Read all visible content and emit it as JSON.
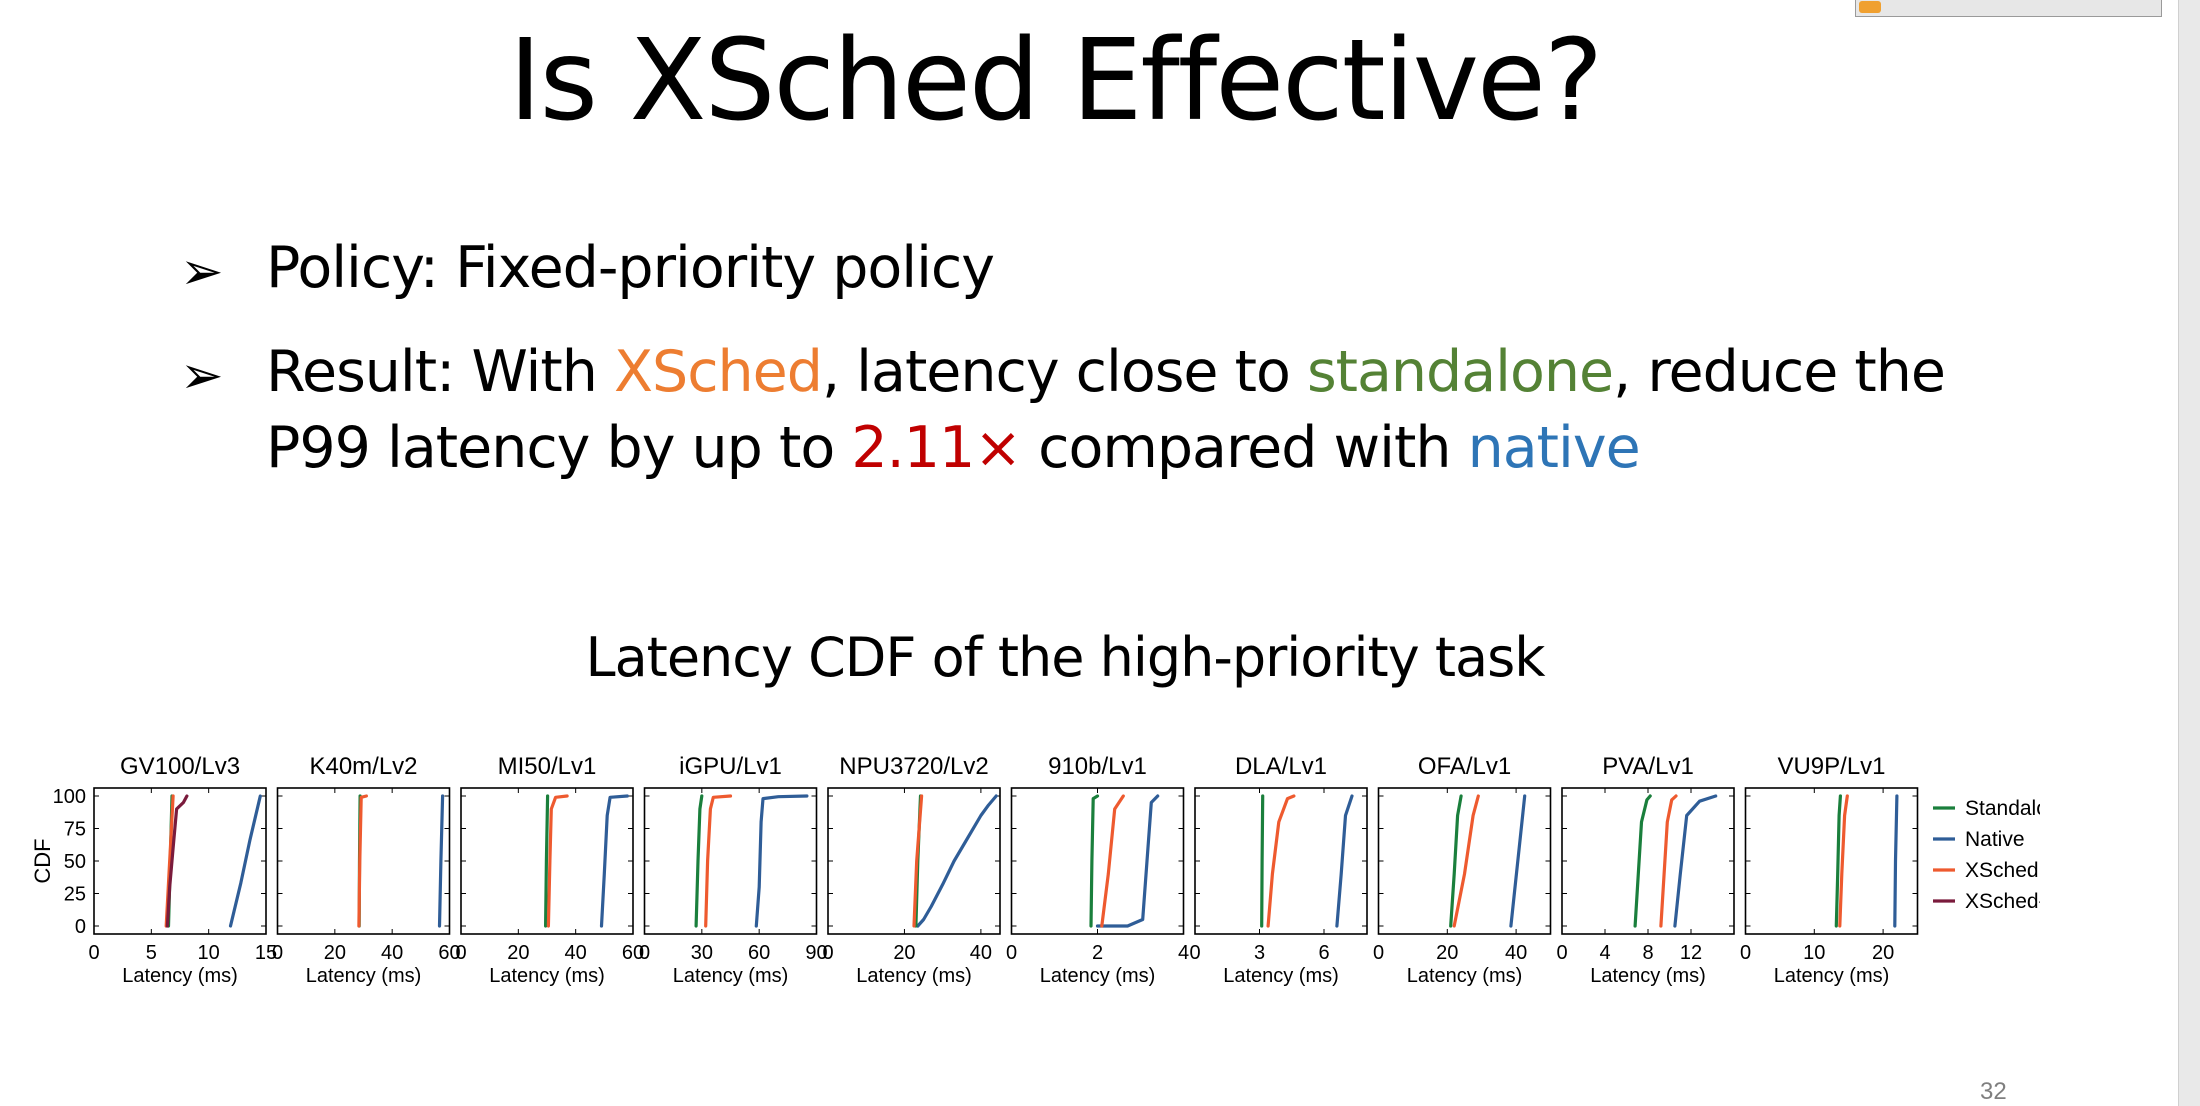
{
  "slide": {
    "title": "Is XSched Effective?",
    "page_number": "32",
    "bullets": {
      "b1": {
        "text": "Policy: Fixed-priority policy"
      },
      "b2": {
        "part1": "Result: With ",
        "xsched": "XSched",
        "part2": ", latency close to ",
        "standalone": "standalone",
        "part3": ", reduce the",
        "line2_part1": "P99 latency by up to ",
        "factor": "2.11×",
        "line2_part2": " compared with ",
        "native": "native"
      }
    },
    "figure_title": "Latency CDF of the high-priority task"
  },
  "colors": {
    "Standalone": "#1a7f3c",
    "Native": "#2f5d97",
    "XSched": "#ee5a2f",
    "XSched-T": "#7a1b3c"
  },
  "chart_data": {
    "type": "line",
    "ylabel": "CDF",
    "xlabel": "Latency (ms)",
    "ylim": [
      0,
      100
    ],
    "yticks": [
      0,
      25,
      50,
      75,
      100
    ],
    "legend": [
      "Standalone",
      "Native",
      "XSched",
      "XSched-T"
    ],
    "legend_position": "right",
    "panels": [
      {
        "title": "GV100/Lv3",
        "xlim": [
          0,
          15
        ],
        "xticks": [
          0,
          5,
          10,
          15
        ],
        "series": [
          {
            "name": "Standalone",
            "x": [
              6.5,
              6.6,
              6.7,
              6.8
            ],
            "y": [
              0,
              33,
              66,
              100
            ]
          },
          {
            "name": "Native",
            "x": [
              11.9,
              12.8,
              13.6,
              14.5
            ],
            "y": [
              0,
              33,
              66,
              100
            ]
          },
          {
            "name": "XSched",
            "x": [
              6.3,
              6.5,
              6.7,
              6.9
            ],
            "y": [
              0,
              33,
              66,
              100
            ]
          },
          {
            "name": "XSched-T",
            "x": [
              6.4,
              6.6,
              6.9,
              7.2,
              7.8,
              8.1
            ],
            "y": [
              0,
              30,
              60,
              90,
              95,
              100
            ]
          }
        ]
      },
      {
        "title": "K40m/Lv2",
        "xlim": [
          0,
          60
        ],
        "xticks": [
          0,
          20,
          40,
          60
        ],
        "series": [
          {
            "name": "Standalone",
            "x": [
              28.5,
              28.6,
              28.8
            ],
            "y": [
              0,
              50,
              100
            ]
          },
          {
            "name": "Native",
            "x": [
              56.5,
              57,
              57.6
            ],
            "y": [
              0,
              50,
              100
            ]
          },
          {
            "name": "XSched",
            "x": [
              28.4,
              28.7,
              29.2,
              31
            ],
            "y": [
              0,
              50,
              99,
              100
            ]
          }
        ]
      },
      {
        "title": "MI50/Lv1",
        "xlim": [
          0,
          60
        ],
        "xticks": [
          0,
          20,
          40,
          60
        ],
        "series": [
          {
            "name": "Standalone",
            "x": [
              29.5,
              29.8,
              30.2
            ],
            "y": [
              0,
              50,
              100
            ]
          },
          {
            "name": "Native",
            "x": [
              49,
              50,
              51,
              52,
              58
            ],
            "y": [
              0,
              40,
              85,
              99,
              100
            ]
          },
          {
            "name": "XSched",
            "x": [
              30.5,
              31,
              31.5,
              33,
              37
            ],
            "y": [
              0,
              50,
              90,
              99,
              100
            ]
          }
        ]
      },
      {
        "title": "iGPU/Lv1",
        "xlim": [
          0,
          90
        ],
        "xticks": [
          0,
          30,
          60,
          90
        ],
        "series": [
          {
            "name": "Standalone",
            "x": [
              27,
              28,
              29,
              30
            ],
            "y": [
              0,
              50,
              90,
              100
            ]
          },
          {
            "name": "Native",
            "x": [
              58.5,
              60,
              61,
              62,
              70,
              85
            ],
            "y": [
              0,
              30,
              80,
              98,
              99.5,
              100
            ]
          },
          {
            "name": "XSched",
            "x": [
              32,
              33,
              34.5,
              36,
              45
            ],
            "y": [
              0,
              50,
              90,
              99,
              100
            ]
          }
        ]
      },
      {
        "title": "NPU3720/Lv2",
        "xlim": [
          0,
          45
        ],
        "xticks": [
          0,
          20,
          40
        ],
        "series": [
          {
            "name": "Standalone",
            "x": [
              23,
              23.5,
              24.2
            ],
            "y": [
              0,
              50,
              100
            ]
          },
          {
            "name": "Native",
            "x": [
              23.5,
              25,
              27,
              30,
              33,
              36,
              40,
              42,
              44
            ],
            "y": [
              0,
              5,
              15,
              32,
              50,
              65,
              85,
              93,
              100
            ]
          },
          {
            "name": "XSched",
            "x": [
              22.5,
              23.2,
              24.5
            ],
            "y": [
              0,
              50,
              100
            ]
          }
        ]
      },
      {
        "title": "910b/Lv1",
        "xlim": [
          0,
          4
        ],
        "xticks": [
          0,
          2,
          4
        ],
        "series": [
          {
            "name": "Standalone",
            "x": [
              1.85,
              1.87,
              1.9,
              2.0
            ],
            "y": [
              0,
              50,
              98,
              100
            ]
          },
          {
            "name": "Native",
            "x": [
              2.0,
              2.7,
              3.05,
              3.15,
              3.25,
              3.4
            ],
            "y": [
              0,
              0,
              5,
              50,
              95,
              100
            ]
          },
          {
            "name": "XSched",
            "x": [
              2.1,
              2.25,
              2.4,
              2.6
            ],
            "y": [
              0,
              40,
              90,
              100
            ]
          }
        ]
      },
      {
        "title": "DLA/Lv1",
        "xlim": [
          0,
          8
        ],
        "xticks": [
          0,
          3,
          6
        ],
        "series": [
          {
            "name": "Standalone",
            "x": [
              3.1,
              3.12,
              3.15
            ],
            "y": [
              0,
              50,
              100
            ]
          },
          {
            "name": "Native",
            "x": [
              6.6,
              6.8,
              7.0,
              7.3
            ],
            "y": [
              0,
              40,
              85,
              100
            ]
          },
          {
            "name": "XSched",
            "x": [
              3.4,
              3.6,
              3.9,
              4.3,
              4.6
            ],
            "y": [
              0,
              40,
              80,
              98,
              100
            ]
          }
        ]
      },
      {
        "title": "OFA/Lv1",
        "xlim": [
          0,
          50
        ],
        "xticks": [
          0,
          20,
          40
        ],
        "series": [
          {
            "name": "Standalone",
            "x": [
              21,
              22,
              23,
              24
            ],
            "y": [
              0,
              40,
              85,
              100
            ]
          },
          {
            "name": "Native",
            "x": [
              38.5,
              40.5,
              42.5
            ],
            "y": [
              0,
              50,
              100
            ]
          },
          {
            "name": "XSched",
            "x": [
              22,
              25,
              27.5,
              29
            ],
            "y": [
              0,
              40,
              85,
              100
            ]
          }
        ]
      },
      {
        "title": "PVA/Lv1",
        "xlim": [
          0,
          16
        ],
        "xticks": [
          0,
          4,
          8,
          12
        ],
        "series": [
          {
            "name": "Standalone",
            "x": [
              6.8,
              7.1,
              7.4,
              7.9,
              8.2
            ],
            "y": [
              0,
              40,
              80,
              97,
              100
            ]
          },
          {
            "name": "Native",
            "x": [
              10.5,
              11.0,
              11.6,
              12.8,
              14.3
            ],
            "y": [
              0,
              40,
              85,
              96,
              100
            ]
          },
          {
            "name": "XSched",
            "x": [
              9.2,
              9.5,
              9.8,
              10.2,
              10.6
            ],
            "y": [
              0,
              40,
              80,
              97,
              100
            ]
          }
        ]
      },
      {
        "title": "VU9P/Lv1",
        "xlim": [
          0,
          25
        ],
        "xticks": [
          0,
          10,
          20
        ],
        "series": [
          {
            "name": "Standalone",
            "x": [
              13.2,
              13.4,
              13.6,
              13.8
            ],
            "y": [
              0,
              40,
              85,
              100
            ]
          },
          {
            "name": "Native",
            "x": [
              21.7,
              21.8,
              22.0
            ],
            "y": [
              0,
              50,
              100
            ]
          },
          {
            "name": "XSched",
            "x": [
              13.7,
              14.0,
              14.4,
              14.8
            ],
            "y": [
              0,
              40,
              85,
              100
            ]
          }
        ]
      }
    ]
  }
}
